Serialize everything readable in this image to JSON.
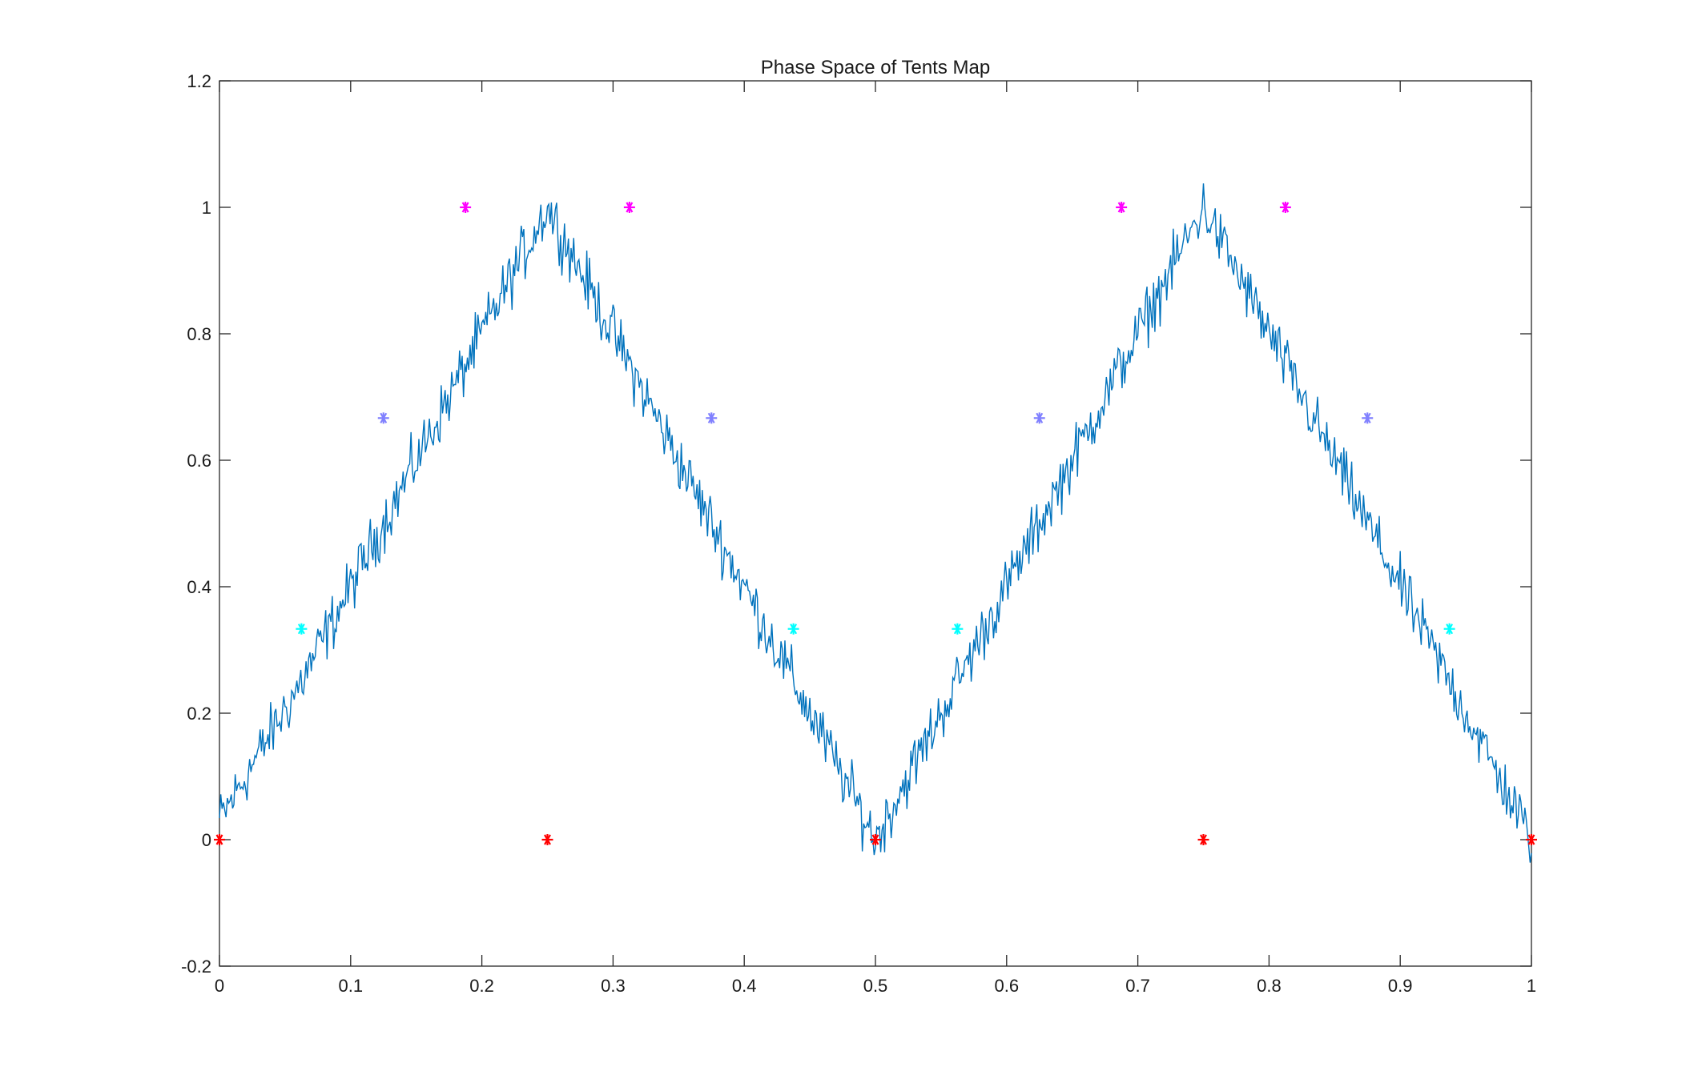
{
  "chart_data": {
    "type": "line",
    "title": "Phase Space of Tents Map",
    "xlabel": "",
    "ylabel": "",
    "xlim": [
      0,
      1
    ],
    "ylim": [
      -0.2,
      1.2
    ],
    "x_ticks": [
      0,
      0.1,
      0.2,
      0.3,
      0.4,
      0.5,
      0.6,
      0.7,
      0.8,
      0.9,
      1
    ],
    "x_tick_labels": [
      "0",
      "0.1",
      "0.2",
      "0.3",
      "0.4",
      "0.5",
      "0.6",
      "0.7",
      "0.8",
      "0.9",
      "1"
    ],
    "y_ticks": [
      -0.2,
      0,
      0.2,
      0.4,
      0.6,
      0.8,
      1,
      1.2
    ],
    "y_tick_labels": [
      "-0.2",
      "0",
      "0.2",
      "0.4",
      "0.6",
      "0.8",
      "1",
      "1.2"
    ],
    "grid": false,
    "line_series": {
      "color": "#0072BD",
      "description_points": [
        [
          0,
          0.03
        ],
        [
          0.0625,
          0.25
        ],
        [
          0.125,
          0.5
        ],
        [
          0.1875,
          0.75
        ],
        [
          0.25,
          1.0
        ],
        [
          0.3125,
          0.75
        ],
        [
          0.375,
          0.5
        ],
        [
          0.4375,
          0.25
        ],
        [
          0.5,
          0.0
        ],
        [
          0.5625,
          0.25
        ],
        [
          0.625,
          0.5
        ],
        [
          0.6875,
          0.75
        ],
        [
          0.75,
          1.0
        ],
        [
          0.8125,
          0.75
        ],
        [
          0.875,
          0.5
        ],
        [
          0.9375,
          0.25
        ],
        [
          1.0,
          0.0
        ]
      ]
    },
    "marker_series": [
      {
        "color": "#FF0000",
        "marker": "*",
        "points": [
          [
            0,
            0
          ],
          [
            0.25,
            0
          ],
          [
            0.5,
            0
          ],
          [
            0.75,
            0
          ],
          [
            1,
            0
          ]
        ]
      },
      {
        "color": "#00FFFF",
        "marker": "*",
        "points": [
          [
            0.0625,
            0.3333
          ],
          [
            0.4375,
            0.3333
          ],
          [
            0.5625,
            0.3333
          ],
          [
            0.9375,
            0.3333
          ]
        ]
      },
      {
        "color": "#8080FF",
        "marker": "*",
        "points": [
          [
            0.125,
            0.6667
          ],
          [
            0.375,
            0.6667
          ],
          [
            0.625,
            0.6667
          ],
          [
            0.875,
            0.6667
          ]
        ]
      },
      {
        "color": "#FF00FF",
        "marker": "*",
        "points": [
          [
            0.1875,
            1.0
          ],
          [
            0.3125,
            1.0
          ],
          [
            0.6875,
            1.0
          ],
          [
            0.8125,
            1.0
          ]
        ]
      }
    ]
  }
}
